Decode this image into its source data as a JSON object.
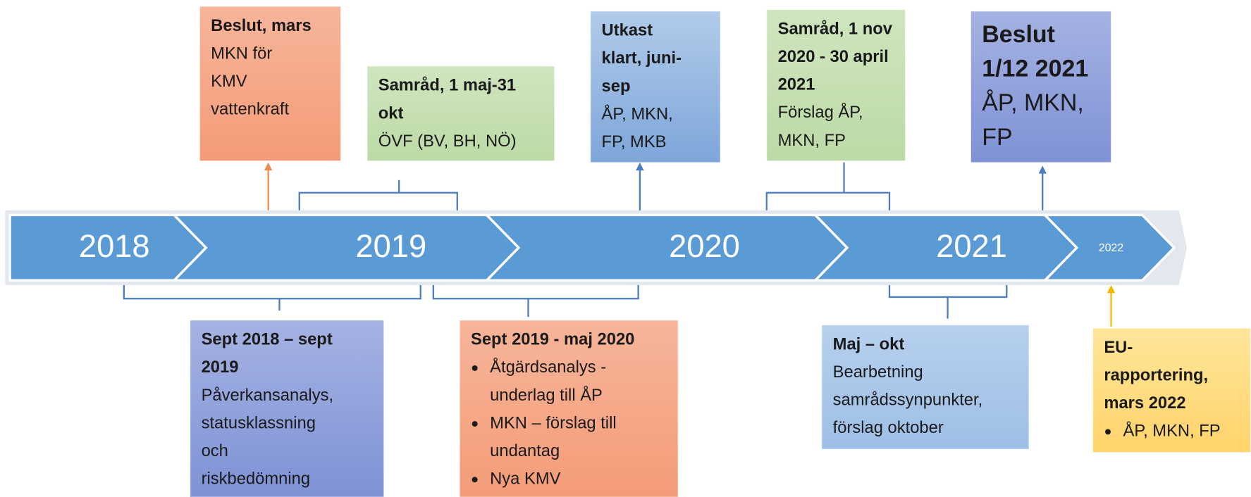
{
  "years": [
    "2018",
    "2019",
    "2020",
    "2021",
    "2022"
  ],
  "boxes": [
    {
      "title": [
        "Beslut, mars"
      ],
      "body": [
        "MKN för",
        "KMV",
        "vattenkraft"
      ]
    },
    {
      "title": [
        "Samråd, 1 maj-31",
        "okt"
      ],
      "body": [
        "ÖVF (BV, BH, NÖ)"
      ]
    },
    {
      "title": [
        "Utkast",
        "klart, juni-",
        "sep"
      ],
      "body": [
        "ÅP, MKN,",
        "FP, MKB"
      ]
    },
    {
      "title": [
        "Samråd, 1 nov",
        "2020 - 30 april",
        "2021"
      ],
      "body": [
        "Förslag ÅP,",
        "MKN, FP"
      ]
    },
    {
      "title": [
        "Beslut",
        "1/12 2021"
      ],
      "body": [
        "ÅP, MKN,",
        "FP"
      ]
    },
    {
      "title": [
        "Sept 2018 –  sept",
        "2019"
      ],
      "body": [
        "Påverkansanalys,",
        "statusklassning",
        "och",
        "riskbedömning"
      ]
    },
    {
      "title": [
        "Sept 2019 - maj 2020"
      ],
      "bullets": [
        [
          "Åtgärdsanalys -",
          "underlag till ÅP"
        ],
        [
          "MKN – förslag till",
          "undantag"
        ],
        [
          "Nya KMV"
        ]
      ]
    },
    {
      "title": [
        "Maj – okt"
      ],
      "body": [
        "Bearbetning",
        "samrådssynpunkter,",
        "förslag oktober"
      ]
    },
    {
      "title": [
        "EU-",
        "rapportering,",
        "mars 2022"
      ],
      "bullets": [
        [
          "ÅP, MKN, FP"
        ]
      ]
    }
  ]
}
